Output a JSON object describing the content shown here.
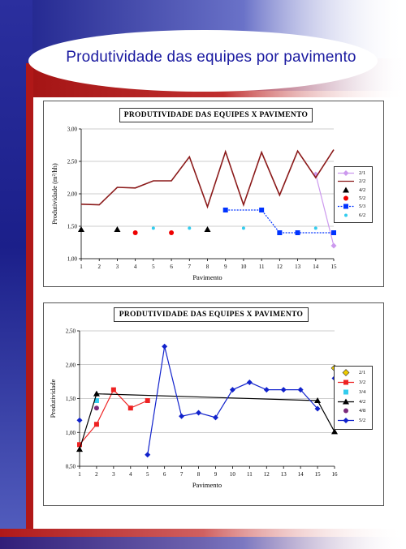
{
  "slide": {
    "title": "Produtividade das equipes por pavimento",
    "colors": {
      "title": "#1a1aa0",
      "band_dark": "#1b1f8a",
      "band_red": "#b01818"
    }
  },
  "chart_data": [
    {
      "type": "line",
      "title": "PRODUTIVIDADE DAS EQUIPES X PAVIMENTO",
      "xlabel": "Pavimento",
      "ylabel": "Produtividade (m²/hh)",
      "xlim": [
        1,
        15
      ],
      "ylim": [
        1.0,
        3.0
      ],
      "x_ticks": [
        1,
        2,
        3,
        4,
        5,
        6,
        7,
        8,
        9,
        10,
        11,
        12,
        13,
        14,
        15
      ],
      "y_ticks": [
        "1,00",
        "1,50",
        "2,00",
        "2,50",
        "3,00"
      ],
      "grid": "horizontal",
      "legend_position": "right",
      "series": [
        {
          "name": "2/1",
          "color": "#cc99ee",
          "marker": "diamond",
          "line": true,
          "dashed": false,
          "points": [
            [
              14,
              2.3
            ],
            [
              15,
              1.2
            ]
          ]
        },
        {
          "name": "2/2",
          "color": "#8b1a1a",
          "marker": "none",
          "line": true,
          "dashed": false,
          "points": [
            [
              1,
              1.84
            ],
            [
              2,
              1.83
            ],
            [
              3,
              2.1
            ],
            [
              4,
              2.09
            ],
            [
              5,
              2.2
            ],
            [
              6,
              2.2
            ],
            [
              7,
              2.57
            ],
            [
              8,
              1.8
            ],
            [
              9,
              2.65
            ],
            [
              10,
              1.83
            ],
            [
              11,
              2.64
            ],
            [
              12,
              1.98
            ],
            [
              13,
              2.66
            ],
            [
              14,
              2.25
            ],
            [
              15,
              2.68
            ]
          ]
        },
        {
          "name": "4/2",
          "color": "#000000",
          "marker": "triangle",
          "line": false,
          "dashed": false,
          "points": [
            [
              1,
              1.45
            ],
            [
              3,
              1.45
            ],
            [
              8,
              1.45
            ]
          ]
        },
        {
          "name": "5/2",
          "color": "#ee0000",
          "marker": "circle",
          "line": false,
          "dashed": false,
          "points": [
            [
              4,
              1.4
            ],
            [
              6,
              1.4
            ]
          ]
        },
        {
          "name": "5/3",
          "color": "#0033ff",
          "marker": "square",
          "line": true,
          "dashed": true,
          "points": [
            [
              9,
              1.75
            ],
            [
              11,
              1.75
            ],
            [
              12,
              1.4
            ],
            [
              13,
              1.4
            ],
            [
              15,
              1.4
            ]
          ]
        },
        {
          "name": "6/2",
          "color": "#33ccee",
          "marker": "circle-small",
          "line": false,
          "dashed": false,
          "points": [
            [
              5,
              1.47
            ],
            [
              7,
              1.47
            ],
            [
              10,
              1.47
            ],
            [
              14,
              1.47
            ]
          ]
        }
      ]
    },
    {
      "type": "line",
      "title": "PRODUTIVIDADE DAS EQUIPES X PAVIMENTO",
      "xlabel": "Pavimento",
      "ylabel": "Produtividade",
      "xlim": [
        1,
        16
      ],
      "ylim": [
        0.5,
        2.5
      ],
      "x_ticks": [
        1,
        2,
        3,
        4,
        5,
        6,
        7,
        8,
        9,
        10,
        11,
        12,
        13,
        14,
        15,
        16
      ],
      "y_ticks": [
        "0,50",
        "1,00",
        "1,50",
        "2,00",
        "2,50"
      ],
      "grid": "horizontal",
      "legend_position": "right",
      "series": [
        {
          "name": "2/1",
          "color": "#eecc00",
          "marker": "diamond-outline",
          "line": false,
          "dashed": false,
          "points": [
            [
              16,
              1.95
            ]
          ]
        },
        {
          "name": "3/2",
          "color": "#ee2222",
          "marker": "square",
          "line": true,
          "dashed": false,
          "points": [
            [
              1,
              0.82
            ],
            [
              2,
              1.12
            ],
            [
              3,
              1.63
            ],
            [
              4,
              1.36
            ],
            [
              5,
              1.47
            ]
          ]
        },
        {
          "name": "3/4",
          "color": "#33ccee",
          "marker": "square",
          "line": false,
          "dashed": false,
          "points": [
            [
              2,
              1.47
            ]
          ]
        },
        {
          "name": "4/2",
          "color": "#000000",
          "marker": "triangle",
          "line": true,
          "dashed": false,
          "points": [
            [
              1,
              0.75
            ],
            [
              2,
              1.57
            ],
            [
              15,
              1.47
            ],
            [
              16,
              1.01
            ]
          ]
        },
        {
          "name": "4/8",
          "color": "#7a2a7a",
          "marker": "circle",
          "line": false,
          "dashed": false,
          "points": [
            [
              2,
              1.36
            ]
          ]
        },
        {
          "name": "5/2",
          "color": "#1122cc",
          "marker": "diamond",
          "line": true,
          "dashed": false,
          "points": [
            [
              5,
              0.67
            ],
            [
              6,
              2.27
            ],
            [
              7,
              1.24
            ],
            [
              8,
              1.29
            ],
            [
              9,
              1.22
            ],
            [
              10,
              1.63
            ],
            [
              11,
              1.74
            ],
            [
              12,
              1.63
            ],
            [
              13,
              1.63
            ],
            [
              14,
              1.63
            ],
            [
              15,
              1.35
            ]
          ],
          "extra_points": [
            [
              1,
              1.18
            ],
            [
              16,
              1.8
            ]
          ]
        }
      ]
    }
  ]
}
